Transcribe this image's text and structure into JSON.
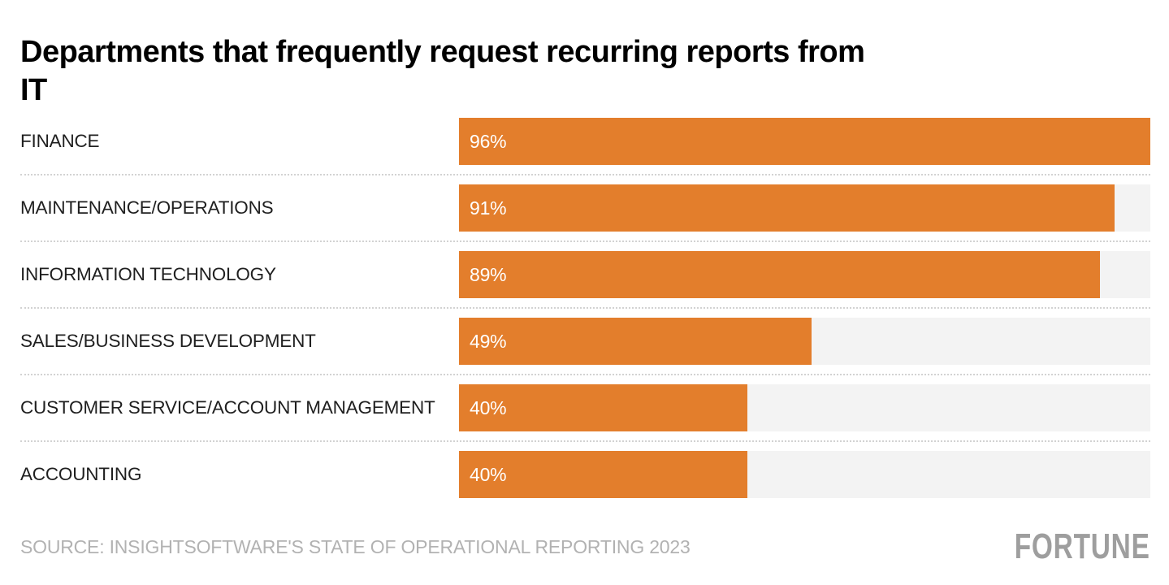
{
  "header": {
    "title": "Departments that frequently request recurring reports from IT",
    "title_lines": [
      "Departments that frequently request recurring reports from",
      "IT"
    ]
  },
  "chart_data": {
    "type": "bar",
    "orientation": "horizontal",
    "title": "Departments that frequently request recurring reports from IT",
    "categories": [
      "FINANCE",
      "MAINTENANCE/OPERATIONS",
      "INFORMATION TECHNOLOGY",
      "SALES/BUSINESS DEVELOPMENT",
      "CUSTOMER SERVICE/ACCOUNT MANAGEMENT",
      "ACCOUNTING"
    ],
    "values": [
      96,
      91,
      89,
      49,
      40,
      40
    ],
    "value_labels": [
      "96%",
      "91%",
      "89%",
      "49%",
      "40%",
      "40%"
    ],
    "xlabel": "",
    "ylabel": "",
    "xlim": [
      0,
      96
    ],
    "scale_max": 96,
    "bars_scaled_to_max": true,
    "value_label_position": "inside-left",
    "bar_color": "#E37E2C",
    "track_color": "#F3F3F3",
    "separator_color": "#D2D2D2",
    "grid": false,
    "legend": false
  },
  "footer": {
    "source": "SOURCE: INSIGHTSOFTWARE'S STATE OF OPERATIONAL REPORTING 2023",
    "brand": "FORTUNE"
  }
}
